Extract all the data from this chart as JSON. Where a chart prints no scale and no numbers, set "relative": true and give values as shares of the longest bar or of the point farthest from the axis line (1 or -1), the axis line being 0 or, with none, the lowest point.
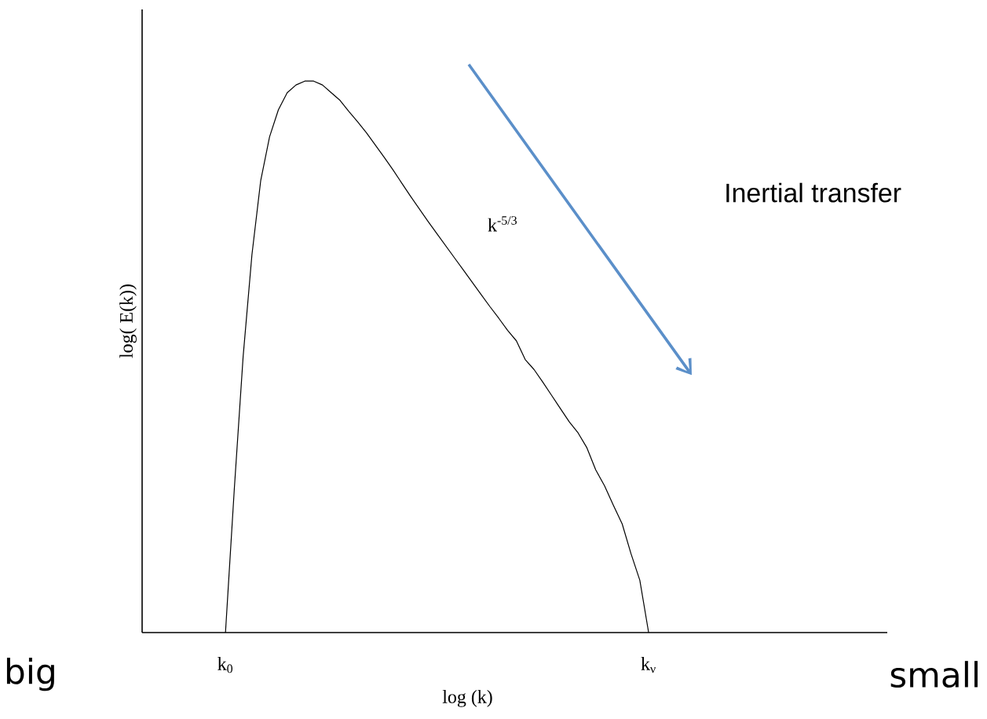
{
  "chart_data": {
    "type": "line",
    "relative": true,
    "xlabel": "log (k)",
    "ylabel": "log( E(k))",
    "categories": [
      "k$_{0}$",
      null,
      null,
      null,
      null,
      null,
      null,
      null,
      null,
      null,
      null,
      null,
      null,
      null,
      null,
      null,
      null,
      null,
      null,
      null,
      null,
      null,
      null,
      null,
      null,
      null,
      null,
      null,
      null,
      null,
      null,
      null,
      null,
      null,
      null,
      null,
      null,
      null,
      null,
      null,
      null,
      null,
      null,
      null,
      null,
      null,
      null,
      null,
      "k$_{ν}$"
    ],
    "values": [
      0,
      0.26,
      0.5,
      0.685,
      0.82,
      0.899,
      0.948,
      0.979,
      0.993,
      1,
      1,
      0.993,
      0.979,
      0.965,
      0.945,
      0.926,
      0.906,
      0.884,
      0.862,
      0.839,
      0.815,
      0.791,
      0.768,
      0.745,
      0.723,
      0.701,
      0.679,
      0.657,
      0.635,
      0.613,
      0.591,
      0.57,
      0.548,
      0.529,
      0.495,
      0.477,
      0.454,
      0.43,
      0.406,
      0.382,
      0.362,
      0.335,
      0.295,
      0.266,
      0.231,
      0.197,
      0.143,
      0.095,
      0
    ],
    "color": "#000000",
    "annotations": [
      "k$^{-5/3}$",
      "Inertial transfer",
      "big",
      "small"
    ]
  }
}
